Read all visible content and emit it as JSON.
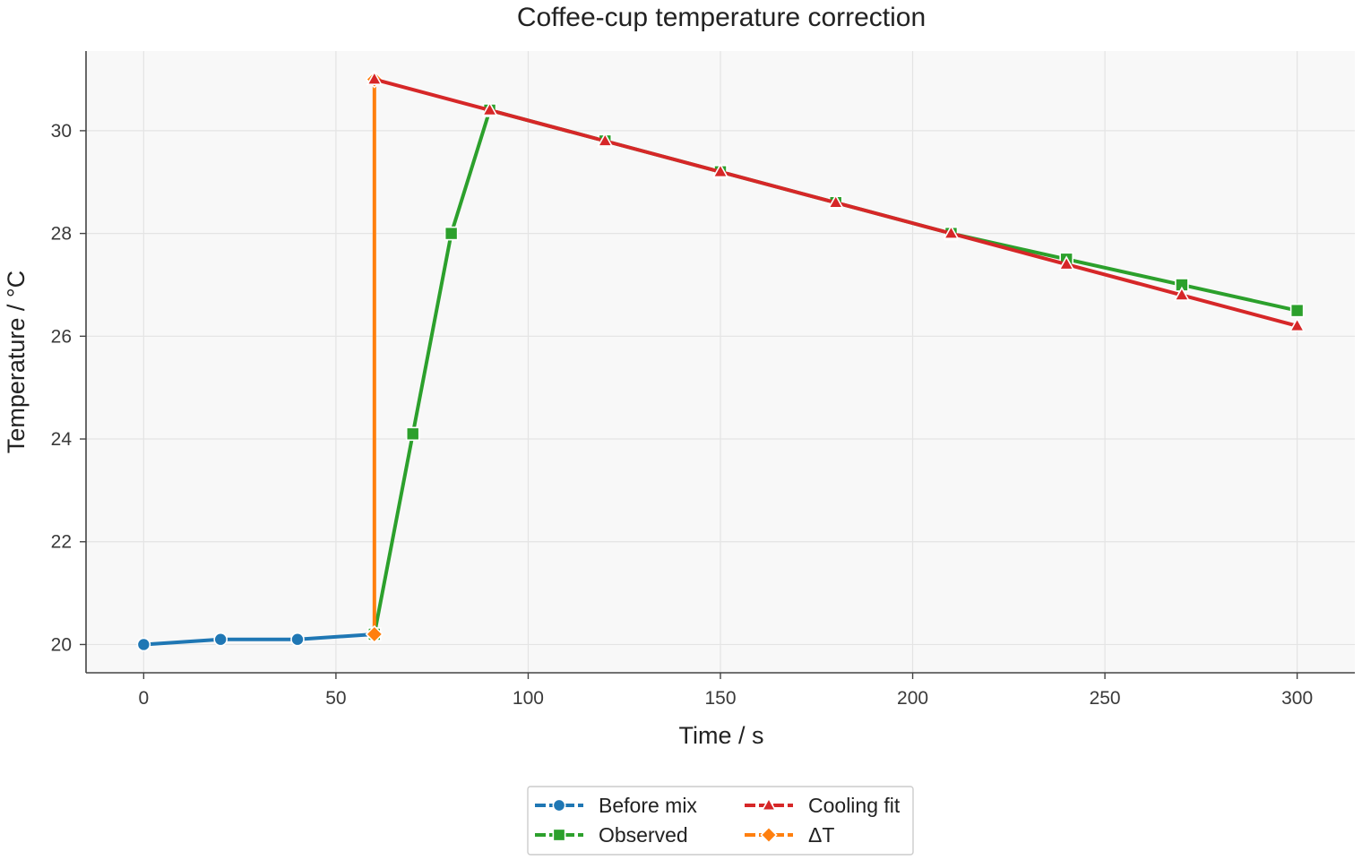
{
  "chart_data": {
    "type": "line",
    "title": "Coffee-cup temperature correction",
    "xlabel": "Time / s",
    "ylabel": "Temperature / °C",
    "xlim": [
      -15,
      315
    ],
    "ylim": [
      19.45,
      31.55
    ],
    "xticks": [
      0,
      50,
      100,
      150,
      200,
      250,
      300
    ],
    "yticks": [
      20,
      22,
      24,
      26,
      28,
      30
    ],
    "grid": true,
    "legend_position": "bottom-center",
    "background": "#f8f8f8",
    "series": [
      {
        "name": "Before mix",
        "color": "#1f77b4",
        "marker": "circle",
        "x": [
          0,
          20,
          40,
          60
        ],
        "y": [
          20.0,
          20.1,
          20.1,
          20.2
        ]
      },
      {
        "name": "Observed",
        "color": "#2ca02c",
        "marker": "square",
        "x": [
          60,
          70,
          80,
          90,
          120,
          150,
          180,
          210,
          240,
          270,
          300
        ],
        "y": [
          20.2,
          24.1,
          28.0,
          30.4,
          29.8,
          29.2,
          28.6,
          28.0,
          27.5,
          27.0,
          26.5
        ]
      },
      {
        "name": "Cooling fit",
        "color": "#d62728",
        "marker": "triangle",
        "x": [
          60,
          90,
          120,
          150,
          180,
          210,
          240,
          270,
          300
        ],
        "y": [
          31.0,
          30.4,
          29.8,
          29.2,
          28.6,
          28.0,
          27.4,
          26.8,
          26.2
        ]
      },
      {
        "name": "ΔT",
        "color": "#ff7f0e",
        "marker": "diamond",
        "x": [
          60,
          60
        ],
        "y": [
          20.2,
          31.0
        ]
      }
    ]
  }
}
